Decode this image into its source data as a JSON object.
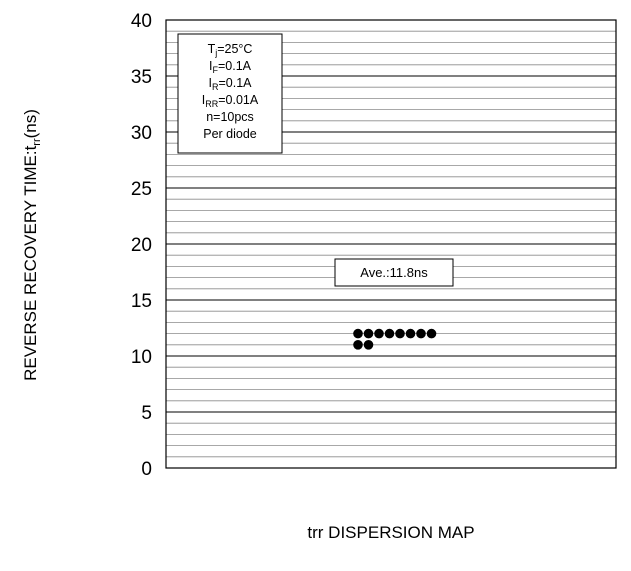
{
  "chart_data": {
    "type": "scatter",
    "x_title": "trr DISPERSION MAP",
    "y_title": "REVERSE RECOVERY TIME:t",
    "y_title_sub": "rr",
    "y_title_unit": "(ns)",
    "ylim": [
      0,
      40
    ],
    "y_major_ticks": [
      0,
      5,
      10,
      15,
      20,
      25,
      30,
      35,
      40
    ],
    "y_minor_step": 1,
    "grid": true,
    "conditions": [
      {
        "main": "T",
        "sub": "j",
        "rest": "=25°C"
      },
      {
        "main": "I",
        "sub": "F",
        "rest": "=0.1A"
      },
      {
        "main": "I",
        "sub": "R",
        "rest": "=0.1A"
      },
      {
        "main": "I",
        "sub": "RR",
        "rest": "=0.01A"
      },
      {
        "main": "n=10pcs",
        "sub": "",
        "rest": ""
      },
      {
        "main": "Per diode",
        "sub": "",
        "rest": ""
      }
    ],
    "average_label": "Ave.:11.8ns",
    "series": [
      {
        "values": [
          11,
          11,
          12,
          12,
          12,
          12,
          12,
          12,
          12,
          12
        ]
      }
    ]
  }
}
